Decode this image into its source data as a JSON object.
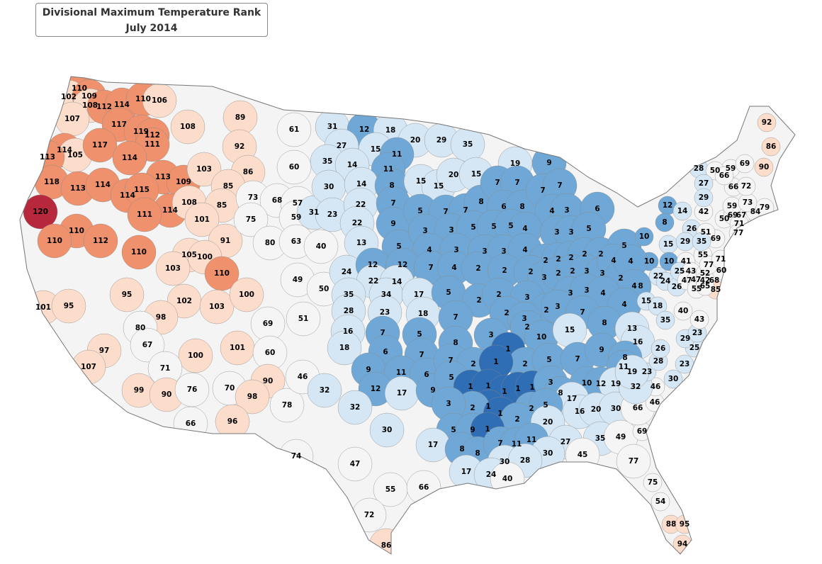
{
  "header": {
    "title": "Divisional Maximum Temperature Rank",
    "subtitle": "July 2014"
  },
  "ranks": [
    110,
    102,
    109,
    108,
    112,
    114,
    110,
    106,
    107,
    117,
    119,
    112,
    111,
    108,
    89,
    114,
    105,
    117,
    113,
    114,
    113,
    109,
    92,
    103,
    86,
    118,
    113,
    114,
    114,
    115,
    114,
    108,
    85,
    85,
    101,
    111,
    120,
    110,
    110,
    112,
    110,
    91,
    105,
    100,
    103,
    110,
    95,
    101,
    95,
    102,
    103,
    100,
    98,
    69,
    80,
    67,
    97,
    107,
    101,
    100,
    60,
    71,
    99,
    90,
    76,
    70,
    90,
    98,
    66,
    96,
    78,
    46,
    61,
    60,
    73,
    68,
    57,
    75,
    59,
    31,
    80,
    63,
    49,
    51,
    50,
    40,
    31,
    12,
    18,
    20,
    29,
    35,
    27,
    15,
    11,
    35,
    14,
    11,
    30,
    14,
    8,
    15,
    15,
    20,
    15,
    19,
    9,
    23,
    22,
    7,
    22,
    9,
    5,
    7,
    7,
    8,
    7,
    7,
    6,
    8,
    7,
    7,
    4,
    3,
    6,
    13,
    5,
    3,
    3,
    5,
    5,
    5,
    4,
    3,
    3,
    5,
    4,
    3,
    3,
    3,
    4,
    2,
    2,
    2,
    2,
    2,
    5,
    10,
    12,
    14,
    8,
    26,
    15,
    29,
    10,
    10,
    24,
    12,
    12,
    7,
    4,
    2,
    2,
    2,
    3,
    2,
    2,
    3,
    3,
    4,
    2,
    4,
    8,
    4,
    22,
    14,
    35,
    34,
    17,
    5,
    2,
    2,
    3,
    3,
    3,
    4,
    2,
    3,
    7,
    4,
    28,
    23,
    18,
    7,
    2,
    3,
    2,
    16,
    7,
    5,
    8,
    3,
    10,
    15,
    8,
    15,
    18,
    13,
    18,
    6,
    7,
    1,
    2,
    5,
    7,
    9,
    16,
    9,
    11,
    6,
    7,
    2,
    1,
    8,
    32,
    12,
    17,
    9,
    5,
    1,
    1,
    1,
    1,
    1,
    3,
    10,
    12,
    11,
    19,
    1,
    2,
    2,
    8,
    17,
    32,
    3,
    1,
    5,
    16,
    20,
    30,
    30,
    2,
    20,
    35,
    49,
    5,
    9,
    1,
    17,
    8,
    8,
    7,
    11,
    11,
    27,
    30,
    45,
    74,
    47,
    17,
    30,
    28,
    24,
    40,
    55,
    66,
    72,
    86,
    77,
    75,
    54,
    88,
    95,
    94,
    69,
    66,
    46,
    46,
    32,
    23,
    19,
    30,
    28,
    26,
    23,
    25,
    29,
    23,
    43,
    35,
    40,
    22,
    24,
    26,
    41,
    25,
    43,
    47,
    47,
    55,
    52,
    42,
    68,
    60,
    85,
    65,
    55,
    77,
    69,
    51,
    35,
    71,
    50,
    69,
    67,
    84,
    79,
    42,
    71,
    77,
    59,
    73,
    66,
    72,
    59,
    69,
    90,
    92,
    86,
    28,
    50,
    66,
    27,
    29
  ]
}
